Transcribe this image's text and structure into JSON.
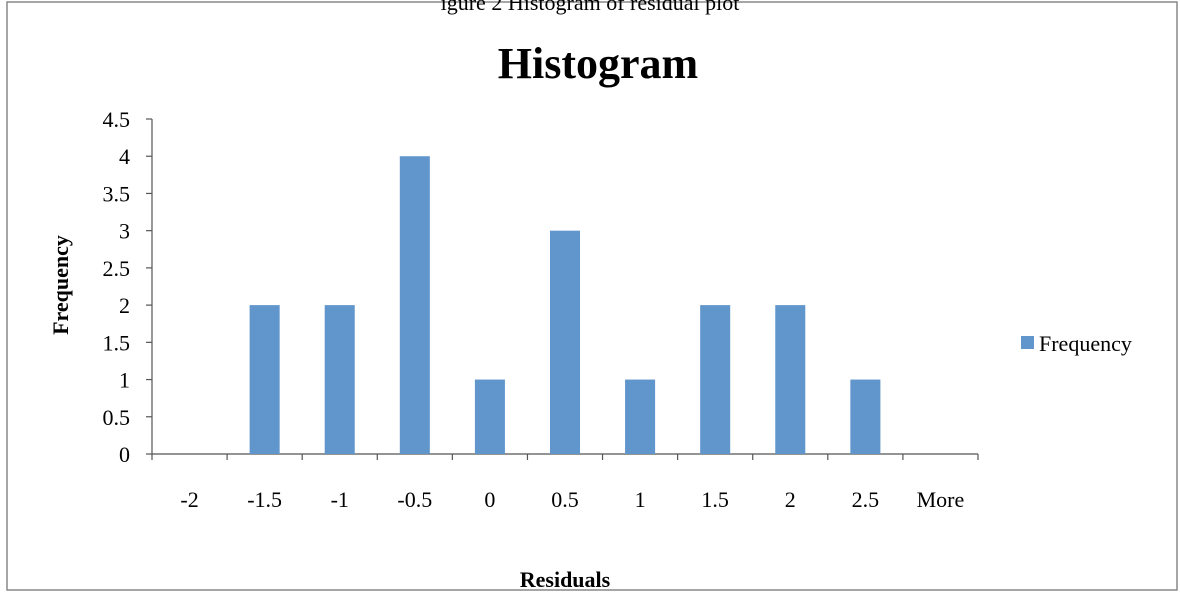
{
  "caption_fragment": "igure 2 Histogram of residual plot",
  "chart_data": {
    "type": "bar",
    "title": "Histogram",
    "xlabel": "Residuals",
    "ylabel": "Frequency",
    "categories": [
      "-2",
      "-1.5",
      "-1",
      "-0.5",
      "0",
      "0.5",
      "1",
      "1.5",
      "2",
      "2.5",
      "More"
    ],
    "series": [
      {
        "name": "Frequency",
        "values": [
          0,
          2,
          2,
          4,
          1,
          3,
          1,
          2,
          2,
          1,
          0
        ],
        "color": "#6196cc"
      }
    ],
    "ylim": [
      0,
      4.5
    ],
    "yticks": [
      0,
      0.5,
      1,
      1.5,
      2,
      2.5,
      3,
      3.5,
      4,
      4.5
    ],
    "ytick_labels": [
      "0",
      "0.5",
      "1",
      "1.5",
      "2",
      "2.5",
      "3",
      "3.5",
      "4",
      "4.5"
    ],
    "grid": false,
    "legend_position": "right"
  }
}
